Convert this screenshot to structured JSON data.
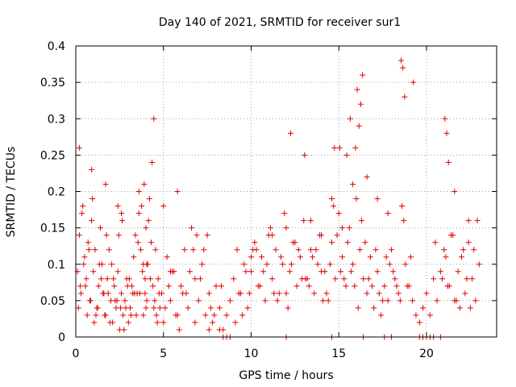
{
  "chart_data": {
    "type": "scatter",
    "title": "Day 140 of 2021, SRMTID for receiver sur1",
    "xlabel": "GPS time / hours",
    "ylabel": "SRMTID / TECUs",
    "xlim": [
      0,
      24
    ],
    "ylim": [
      0,
      0.4
    ],
    "xticks": [
      0,
      5,
      10,
      15,
      20
    ],
    "yticks": [
      0,
      0.05,
      0.1,
      0.15,
      0.2,
      0.25,
      0.3,
      0.35,
      0.4
    ],
    "xtick_labels": [
      "0",
      "5",
      "10",
      "15",
      "20"
    ],
    "ytick_labels": [
      "0",
      "0.05",
      "0.1",
      "0.15",
      "0.2",
      "0.25",
      "0.3",
      "0.35",
      "0.4"
    ],
    "grid": true,
    "marker": "+",
    "color": "#e00000",
    "series": [
      {
        "name": "sur1",
        "x": [
          0.1,
          0.2,
          0.3,
          0.4,
          0.5,
          0.6,
          0.7,
          0.8,
          0.9,
          1.0,
          1.1,
          1.2,
          1.3,
          1.4,
          1.5,
          1.6,
          1.7,
          1.8,
          1.9,
          2.0,
          2.1,
          2.2,
          2.3,
          2.4,
          2.5,
          2.6,
          2.7,
          2.8,
          2.9,
          3.0,
          3.1,
          3.2,
          3.3,
          3.4,
          3.5,
          3.6,
          3.7,
          3.8,
          3.9,
          4.0,
          4.1,
          4.2,
          4.3,
          4.4,
          4.5,
          4.6,
          4.7,
          4.8,
          4.9,
          5.0,
          5.2,
          5.4,
          5.6,
          5.8,
          6.0,
          6.2,
          6.4,
          6.6,
          6.8,
          7.0,
          7.2,
          7.4,
          7.6,
          7.8,
          8.0,
          8.2,
          8.4,
          8.6,
          8.8,
          9.0,
          9.2,
          9.4,
          9.6,
          9.8,
          10.0,
          10.2,
          10.4,
          10.6,
          10.8,
          11.0,
          11.2,
          11.4,
          11.6,
          11.8,
          12.0,
          12.2,
          12.4,
          12.6,
          12.8,
          13.0,
          13.2,
          13.4,
          13.6,
          13.8,
          14.0,
          14.2,
          14.4,
          14.6,
          14.8,
          15.0,
          15.2,
          15.4,
          15.6,
          15.8,
          16.0,
          16.2,
          16.4,
          16.6,
          16.8,
          17.0,
          17.2,
          17.4,
          17.6,
          17.8,
          18.0,
          18.2,
          18.4,
          18.6,
          18.8,
          19.0,
          19.2,
          19.4,
          19.6,
          19.8,
          20.0,
          20.2,
          20.4,
          20.6,
          20.8,
          21.0,
          21.2,
          21.4,
          21.6,
          21.8,
          22.0,
          22.2,
          22.4,
          22.6,
          22.8,
          23.0,
          0.15,
          0.35,
          0.55,
          0.75,
          0.95,
          1.15,
          1.35,
          1.55,
          1.75,
          1.95,
          2.15,
          2.35,
          2.55,
          2.75,
          2.95,
          3.15,
          3.35,
          3.55,
          3.75,
          3.95,
          4.15,
          4.35,
          4.55,
          4.75,
          5.1,
          5.5,
          5.9,
          6.3,
          6.7,
          7.1,
          7.5,
          7.9,
          8.3,
          9.1,
          9.5,
          9.9,
          10.3,
          10.7,
          11.1,
          11.5,
          11.9,
          12.3,
          12.7,
          13.1,
          13.5,
          13.9,
          14.3,
          14.7,
          15.1,
          15.5,
          15.9,
          16.3,
          16.7,
          17.1,
          17.5,
          17.9,
          18.3,
          18.7,
          19.1,
          20.5,
          20.9,
          21.3,
          21.7,
          22.1,
          22.5,
          22.9,
          0.25,
          0.45,
          0.65,
          0.85,
          1.05,
          1.25,
          1.45,
          1.65,
          1.85,
          2.05,
          2.25,
          2.45,
          2.65,
          2.85,
          3.05,
          3.25,
          3.45,
          3.65,
          3.85,
          4.05,
          4.25,
          4.45,
          4.65,
          5.3,
          5.7,
          6.1,
          6.5,
          6.9,
          7.3,
          7.7,
          9.3,
          9.7,
          10.1,
          10.5,
          10.9,
          11.3,
          11.7,
          12.1,
          12.5,
          12.9,
          13.3,
          13.7,
          14.1,
          14.5,
          14.9,
          15.3,
          15.7,
          16.1,
          16.5,
          16.9,
          17.3,
          17.7,
          18.1,
          18.5,
          18.9,
          21.1,
          21.5,
          21.9,
          22.3,
          22.7,
          3.85,
          3.95,
          4.05,
          4.45,
          12.25,
          13.05,
          14.75,
          15.05,
          15.45,
          15.65,
          15.95,
          16.05,
          16.15,
          16.25,
          16.35,
          18.55,
          18.65,
          18.75,
          19.25,
          21.05,
          21.15,
          21.25,
          0.2,
          0.9,
          1.7,
          2.4,
          2.6,
          3.6,
          4.0,
          10.0,
          11.2,
          12.0,
          13.4,
          14.0,
          14.6,
          15.2,
          15.8,
          16.6,
          17.2,
          17.8,
          21.6,
          22.4,
          5.0,
          5.4,
          5.8,
          6.8,
          7.6,
          8.2,
          8.4,
          8.6,
          8.8,
          12.0,
          14.6,
          16.4,
          17.6,
          18.0,
          19.6,
          19.8,
          20.0,
          20.2,
          20.4,
          20.8
        ],
        "y": [
          0.09,
          0.14,
          0.06,
          0.18,
          0.11,
          0.08,
          0.13,
          0.05,
          0.16,
          0.09,
          0.12,
          0.04,
          0.07,
          0.15,
          0.1,
          0.06,
          0.03,
          0.08,
          0.12,
          0.05,
          0.02,
          0.07,
          0.04,
          0.09,
          0.01,
          0.06,
          0.03,
          0.05,
          0.08,
          0.02,
          0.04,
          0.07,
          0.11,
          0.14,
          0.06,
          0.17,
          0.12,
          0.09,
          0.21,
          0.15,
          0.1,
          0.19,
          0.13,
          0.07,
          0.05,
          0.03,
          0.08,
          0.04,
          0.06,
          0.02,
          0.11,
          0.05,
          0.09,
          0.03,
          0.07,
          0.12,
          0.04,
          0.15,
          0.08,
          0.05,
          0.1,
          0.03,
          0.06,
          0.02,
          0.07,
          0.04,
          0.01,
          0.03,
          0.05,
          0.08,
          0.12,
          0.06,
          0.1,
          0.04,
          0.09,
          0.13,
          0.07,
          0.11,
          0.05,
          0.14,
          0.08,
          0.12,
          0.06,
          0.1,
          0.15,
          0.09,
          0.13,
          0.07,
          0.11,
          0.16,
          0.08,
          0.12,
          0.06,
          0.1,
          0.14,
          0.09,
          0.05,
          0.13,
          0.08,
          0.17,
          0.11,
          0.07,
          0.15,
          0.1,
          0.19,
          0.12,
          0.08,
          0.06,
          0.11,
          0.04,
          0.09,
          0.03,
          0.07,
          0.05,
          0.12,
          0.08,
          0.06,
          0.18,
          0.1,
          0.07,
          0.05,
          0.03,
          0.02,
          0.04,
          0.06,
          0.03,
          0.08,
          0.05,
          0.09,
          0.12,
          0.07,
          0.14,
          0.05,
          0.09,
          0.11,
          0.06,
          0.13,
          0.08,
          0.05,
          0.1,
          0.04,
          0.17,
          0.07,
          0.12,
          0.19,
          0.03,
          0.1,
          0.06,
          0.14,
          0.02,
          0.08,
          0.05,
          0.04,
          0.01,
          0.07,
          0.03,
          0.06,
          0.13,
          0.18,
          0.08,
          0.16,
          0.24,
          0.12,
          0.06,
          0.04,
          0.09,
          0.01,
          0.06,
          0.12,
          0.08,
          0.14,
          0.03,
          0.07,
          0.02,
          0.03,
          0.06,
          0.12,
          0.09,
          0.15,
          0.05,
          0.17,
          0.1,
          0.12,
          0.08,
          0.11,
          0.14,
          0.06,
          0.18,
          0.09,
          0.13,
          0.07,
          0.16,
          0.08,
          0.12,
          0.05,
          0.1,
          0.07,
          0.16,
          0.11,
          0.13,
          0.08,
          0.07,
          0.05,
          0.12,
          0.04,
          0.16,
          0.07,
          0.1,
          0.03,
          0.05,
          0.02,
          0.04,
          0.08,
          0.03,
          0.06,
          0.1,
          0.05,
          0.14,
          0.16,
          0.04,
          0.08,
          0.06,
          0.03,
          0.06,
          0.1,
          0.05,
          0.08,
          0.04,
          0.02,
          0.07,
          0.03,
          0.06,
          0.09,
          0.14,
          0.12,
          0.04,
          0.06,
          0.09,
          0.12,
          0.07,
          0.1,
          0.06,
          0.11,
          0.04,
          0.13,
          0.08,
          0.07,
          0.12,
          0.05,
          0.1,
          0.14,
          0.08,
          0.09,
          0.04,
          0.13,
          0.07,
          0.06,
          0.11,
          0.09,
          0.05,
          0.07,
          0.11,
          0.14,
          0.04,
          0.08,
          0.12,
          0.03,
          0.06,
          0.1,
          0.3,
          0.28,
          0.25,
          0.26,
          0.26,
          0.25,
          0.3,
          0.26,
          0.34,
          0.29,
          0.32,
          0.36,
          0.38,
          0.37,
          0.33,
          0.35,
          0.3,
          0.28,
          0.24,
          0.26,
          0.23,
          0.21,
          0.18,
          0.17,
          0.2,
          0.04,
          0.11,
          0.14,
          0.06,
          0.16,
          0.09,
          0.19,
          0.15,
          0.21,
          0.22,
          0.19,
          0.17,
          0.2,
          0.16,
          0.18,
          0.09,
          0.2,
          0.02,
          0.01,
          0.01,
          0.0,
          0.0,
          0.0,
          0.0,
          0.0,
          0.0,
          0.0,
          0.0,
          0.0,
          0.0,
          0.0,
          0.0,
          0.0,
          0.0
        ]
      }
    ]
  }
}
